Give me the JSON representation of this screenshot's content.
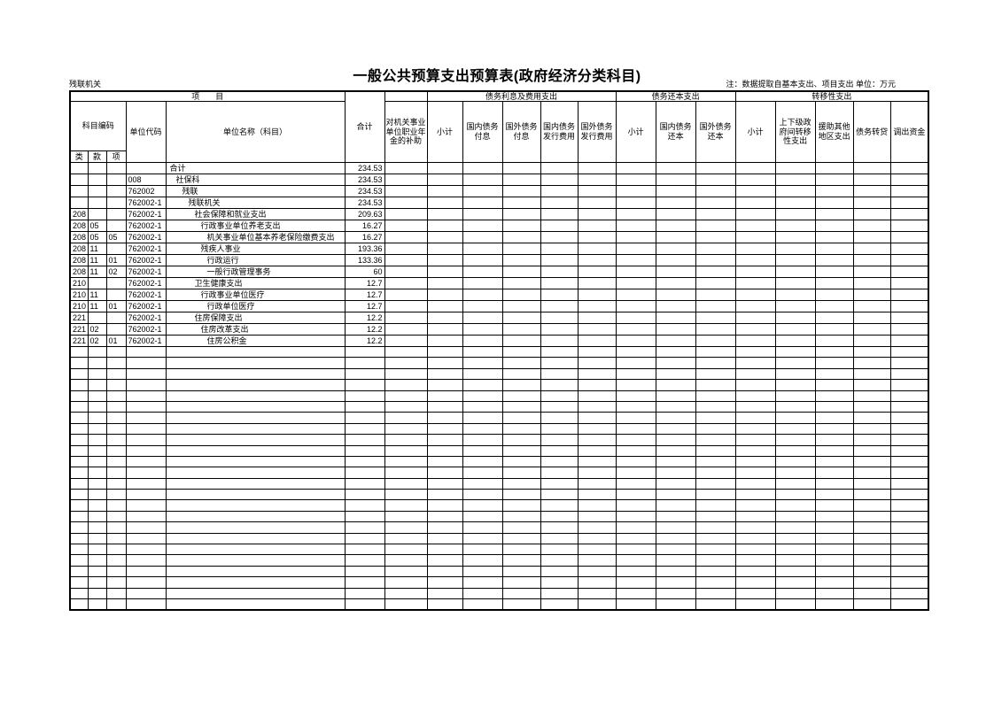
{
  "page": {
    "title": "一般公共预算支出预算表(政府经济分类科目)",
    "unit_label": "残联机关",
    "note": "注：数据提取自基本支出、项目支出  单位：万元"
  },
  "table": {
    "header": {
      "item_group": "项　　目",
      "subject_code": "科目编码",
      "code_sub": [
        "类",
        "款",
        "项"
      ],
      "unit_code": "单位代码",
      "unit_name": "单位名称（科目）",
      "total": "合计",
      "annuity": "对机关事业单位职业年金的补助",
      "debt_interest_group": "债务利息及费用支出",
      "debt_interest_cols": [
        "小计",
        "国内债务付息",
        "国外债务付息",
        "国内债务发行费用",
        "国外债务发行费用"
      ],
      "debt_principal_group": "债务还本支出",
      "debt_principal_cols": [
        "小计",
        "国内债务还本",
        "国外债务还本"
      ],
      "transfer_group": "转移性支出",
      "transfer_cols": [
        "小计",
        "上下级政府间转移性支出",
        "援助其他地区支出",
        "债务转贷",
        "调出资金"
      ]
    },
    "rows": [
      {
        "lei": "",
        "kuan": "",
        "xiang": "",
        "code": "",
        "name": "合计",
        "indent": 0,
        "total": "234.53"
      },
      {
        "lei": "",
        "kuan": "",
        "xiang": "",
        "code": "008",
        "name": "社保科",
        "indent": 1,
        "total": "234.53"
      },
      {
        "lei": "",
        "kuan": "",
        "xiang": "",
        "code": "762002",
        "name": "残联",
        "indent": 2,
        "total": "234.53"
      },
      {
        "lei": "",
        "kuan": "",
        "xiang": "",
        "code": "762002-1",
        "name": "残联机关",
        "indent": 3,
        "total": "234.53"
      },
      {
        "lei": "208",
        "kuan": "",
        "xiang": "",
        "code": "762002-1",
        "name": "社会保障和就业支出",
        "indent": 4,
        "total": "209.63"
      },
      {
        "lei": "208",
        "kuan": "05",
        "xiang": "",
        "code": "762002-1",
        "name": "行政事业单位养老支出",
        "indent": 5,
        "total": "16.27"
      },
      {
        "lei": "208",
        "kuan": "05",
        "xiang": "05",
        "code": "762002-1",
        "name": "机关事业单位基本养老保险缴费支出",
        "indent": 6,
        "total": "16.27"
      },
      {
        "lei": "208",
        "kuan": "11",
        "xiang": "",
        "code": "762002-1",
        "name": "残疾人事业",
        "indent": 5,
        "total": "193.36"
      },
      {
        "lei": "208",
        "kuan": "11",
        "xiang": "01",
        "code": "762002-1",
        "name": "行政运行",
        "indent": 6,
        "total": "133.36"
      },
      {
        "lei": "208",
        "kuan": "11",
        "xiang": "02",
        "code": "762002-1",
        "name": "一般行政管理事务",
        "indent": 6,
        "total": "60"
      },
      {
        "lei": "210",
        "kuan": "",
        "xiang": "",
        "code": "762002-1",
        "name": "卫生健康支出",
        "indent": 4,
        "total": "12.7"
      },
      {
        "lei": "210",
        "kuan": "11",
        "xiang": "",
        "code": "762002-1",
        "name": "行政事业单位医疗",
        "indent": 5,
        "total": "12.7"
      },
      {
        "lei": "210",
        "kuan": "11",
        "xiang": "01",
        "code": "762002-1",
        "name": "行政单位医疗",
        "indent": 6,
        "total": "12.7"
      },
      {
        "lei": "221",
        "kuan": "",
        "xiang": "",
        "code": "762002-1",
        "name": "住房保障支出",
        "indent": 4,
        "total": "12.2"
      },
      {
        "lei": "221",
        "kuan": "02",
        "xiang": "",
        "code": "762002-1",
        "name": "住房改革支出",
        "indent": 5,
        "total": "12.2"
      },
      {
        "lei": "221",
        "kuan": "02",
        "xiang": "01",
        "code": "762002-1",
        "name": "住房公积金",
        "indent": 6,
        "total": "12.2"
      }
    ],
    "empty_row_count": 24,
    "empty_cols_after_total": 14
  }
}
